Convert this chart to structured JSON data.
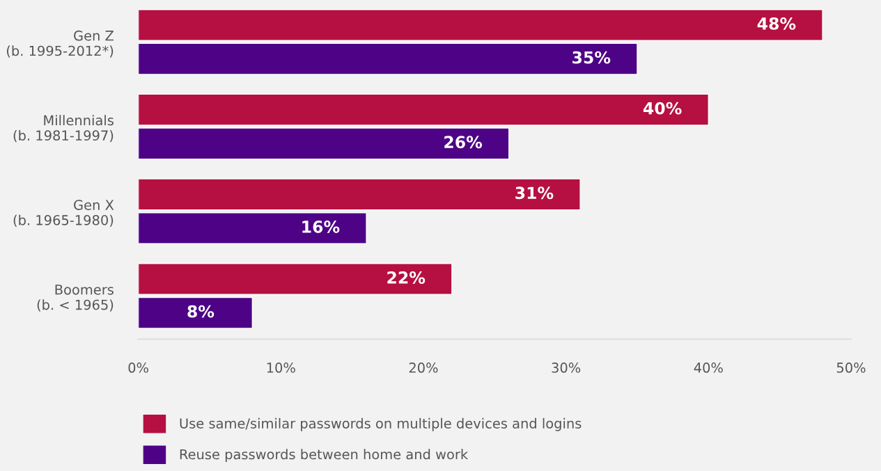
{
  "chart_data": {
    "type": "bar",
    "orientation": "horizontal",
    "categories": [
      "Gen Z\n(b. 1995-2012*)",
      "Millennials\n(b. 1981-1997)",
      "Gen X\n(b. 1965-1980)",
      "Boomers\n(b. < 1965)"
    ],
    "series": [
      {
        "name": "Use same/similar passwords on multiple devices and logins",
        "color": "#b51041",
        "values": [
          48,
          40,
          31,
          22
        ],
        "value_labels": [
          "48%",
          "40%",
          "31%",
          "22%"
        ]
      },
      {
        "name": "Reuse passwords between home and work",
        "color": "#4e0387",
        "values": [
          35,
          26,
          16,
          8
        ],
        "value_labels": [
          "35%",
          "26%",
          "16%",
          "8%"
        ]
      }
    ],
    "xlim": [
      0,
      50
    ],
    "xticks": [
      {
        "value": 0,
        "label": "0%"
      },
      {
        "value": 10,
        "label": "10%"
      },
      {
        "value": 20,
        "label": "20%"
      },
      {
        "value": 30,
        "label": "30%"
      },
      {
        "value": 40,
        "label": "40%"
      },
      {
        "value": 50,
        "label": "50%"
      }
    ],
    "grid": false,
    "legend": "bottom"
  }
}
